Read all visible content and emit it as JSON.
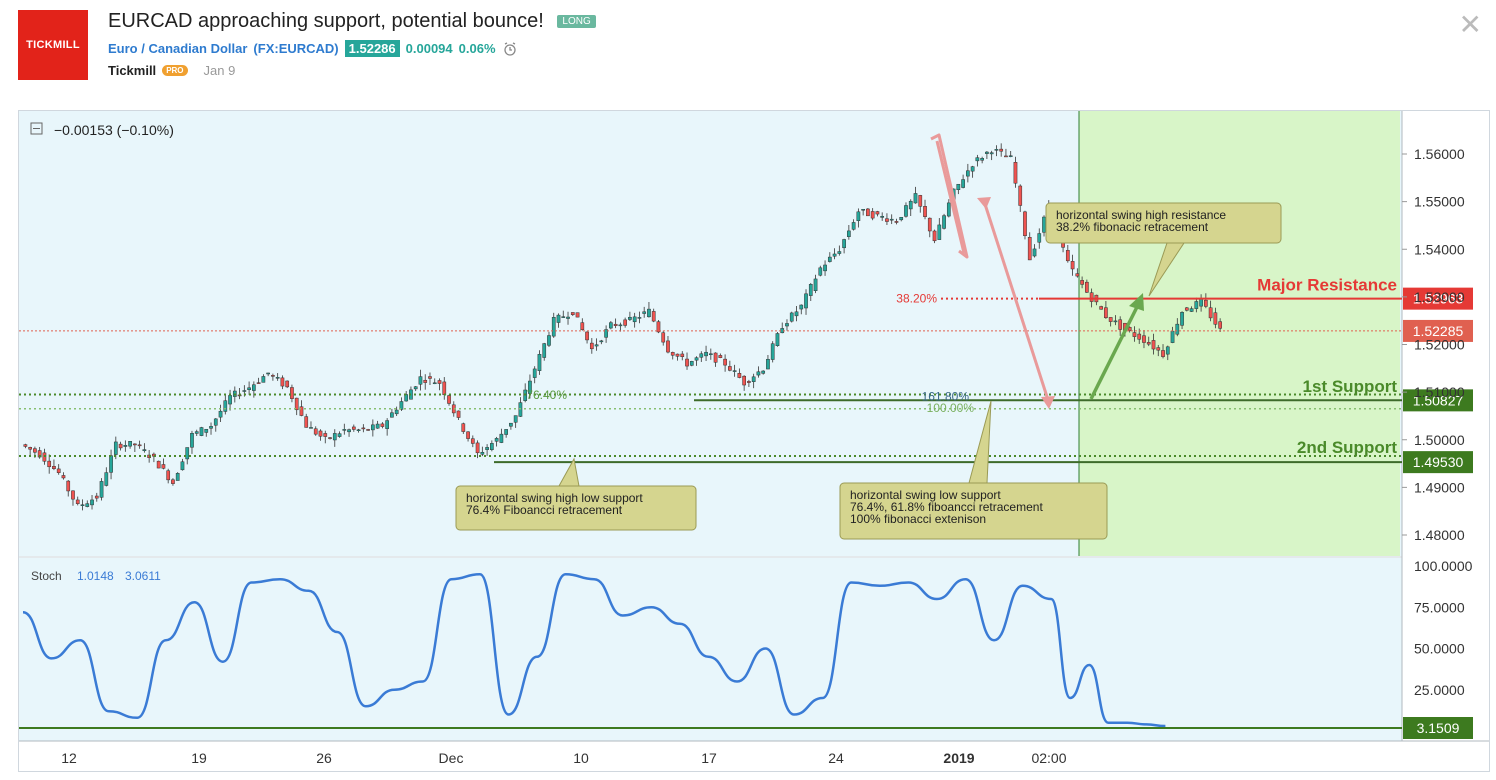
{
  "header": {
    "logo_text": "TICKMILL",
    "title": "EURCAD approaching support, potential bounce!",
    "badge": "LONG",
    "symbol_name": "Euro / Canadian Dollar",
    "symbol_code": "(FX:EURCAD)",
    "price": "1.52286",
    "change": "0.00094",
    "change_pct": "0.06%",
    "author": "Tickmill",
    "author_badge": "PRO",
    "date": "Jan 9",
    "close_icon": "close-icon"
  },
  "chart_data": {
    "type": "candlestick",
    "symbol": "EURCAD",
    "change_readout": "−0.00153 (−0.10%)",
    "ylim": [
      1.476,
      1.566
    ],
    "y_ticks": [
      "1.56000",
      "1.55000",
      "1.54000",
      "1.53000",
      "1.52000",
      "1.51000",
      "1.50000",
      "1.49000",
      "1.48000"
    ],
    "x_ticks": [
      "12",
      "19",
      "26",
      "Dec",
      "10",
      "17",
      "24",
      "2019",
      "02:00"
    ],
    "price_path": [
      [
        0,
        1.499
      ],
      [
        2,
        1.497
      ],
      [
        4,
        1.493
      ],
      [
        6,
        1.486
      ],
      [
        8,
        1.488
      ],
      [
        10,
        1.499
      ],
      [
        12,
        1.499
      ],
      [
        14,
        1.496
      ],
      [
        16,
        1.491
      ],
      [
        18,
        1.501
      ],
      [
        20,
        1.503
      ],
      [
        22,
        1.509
      ],
      [
        24,
        1.511
      ],
      [
        26,
        1.514
      ],
      [
        28,
        1.511
      ],
      [
        30,
        1.503
      ],
      [
        32,
        1.5
      ],
      [
        34,
        1.502
      ],
      [
        36,
        1.502
      ],
      [
        38,
        1.503
      ],
      [
        40,
        1.508
      ],
      [
        42,
        1.513
      ],
      [
        44,
        1.512
      ],
      [
        46,
        1.504
      ],
      [
        48,
        1.497
      ],
      [
        50,
        1.5
      ],
      [
        52,
        1.505
      ],
      [
        54,
        1.515
      ],
      [
        56,
        1.525
      ],
      [
        58,
        1.527
      ],
      [
        60,
        1.519
      ],
      [
        62,
        1.524
      ],
      [
        64,
        1.525
      ],
      [
        66,
        1.527
      ],
      [
        68,
        1.519
      ],
      [
        70,
        1.516
      ],
      [
        72,
        1.518
      ],
      [
        74,
        1.516
      ],
      [
        76,
        1.512
      ],
      [
        78,
        1.515
      ],
      [
        80,
        1.524
      ],
      [
        82,
        1.528
      ],
      [
        84,
        1.536
      ],
      [
        86,
        1.54
      ],
      [
        88,
        1.548
      ],
      [
        90,
        1.547
      ],
      [
        92,
        1.546
      ],
      [
        94,
        1.551
      ],
      [
        96,
        1.542
      ],
      [
        98,
        1.552
      ],
      [
        100,
        1.558
      ],
      [
        102,
        1.561
      ],
      [
        104,
        1.559
      ],
      [
        106,
        1.538
      ],
      [
        108,
        1.549
      ],
      [
        110,
        1.537
      ],
      [
        112,
        1.531
      ],
      [
        114,
        1.526
      ],
      [
        116,
        1.523
      ],
      [
        118,
        1.521
      ],
      [
        120,
        1.518
      ],
      [
        122,
        1.527
      ],
      [
        124,
        1.529
      ],
      [
        126,
        1.523
      ]
    ],
    "stoch": {
      "label": "Stoch",
      "k_value": "1.0148",
      "d_value": "3.0611",
      "last_value": "3.1509",
      "ylim": [
        0,
        100
      ],
      "y_ticks": [
        "100.0000",
        "75.0000",
        "50.0000",
        "25.0000"
      ],
      "path": [
        [
          0,
          72
        ],
        [
          3,
          44
        ],
        [
          6,
          55
        ],
        [
          9,
          12
        ],
        [
          12,
          8
        ],
        [
          15,
          55
        ],
        [
          18,
          78
        ],
        [
          21,
          42
        ],
        [
          24,
          90
        ],
        [
          27,
          92
        ],
        [
          30,
          85
        ],
        [
          33,
          60
        ],
        [
          36,
          15
        ],
        [
          39,
          25
        ],
        [
          42,
          30
        ],
        [
          45,
          92
        ],
        [
          48,
          95
        ],
        [
          51,
          10
        ],
        [
          54,
          45
        ],
        [
          57,
          95
        ],
        [
          60,
          92
        ],
        [
          63,
          70
        ],
        [
          66,
          75
        ],
        [
          69,
          65
        ],
        [
          72,
          45
        ],
        [
          75,
          30
        ],
        [
          78,
          50
        ],
        [
          81,
          10
        ],
        [
          84,
          20
        ],
        [
          87,
          90
        ],
        [
          90,
          88
        ],
        [
          93,
          90
        ],
        [
          96,
          80
        ],
        [
          99,
          92
        ],
        [
          102,
          55
        ],
        [
          105,
          88
        ],
        [
          108,
          80
        ],
        [
          110,
          20
        ],
        [
          112,
          40
        ],
        [
          114,
          5
        ],
        [
          116,
          5
        ],
        [
          118,
          4
        ],
        [
          120,
          3
        ]
      ]
    },
    "annotations": [
      {
        "label": "Major Resistance",
        "value": "1.52963",
        "fib": "38.20%",
        "color": "#e53935"
      },
      {
        "label": "1st Support",
        "value": "1.50827",
        "fib": "161.80%",
        "color": "#4a8a2a"
      },
      {
        "label": "2nd Support",
        "value": "1.49530",
        "color": "#4a8a2a"
      },
      {
        "label": "current",
        "value": "1.52285",
        "color": "#e06050"
      }
    ],
    "fib_labels": [
      "76.40%",
      "100.00%"
    ],
    "callouts": [
      {
        "name": "resistance-callout",
        "lines": [
          "horizontal swing high resistance",
          "38.2% fibonacic retracement"
        ]
      },
      {
        "name": "support-callout-left",
        "lines": [
          "horizontal swing high low support",
          "76.4% Fiboancci retracement"
        ]
      },
      {
        "name": "support-callout-right",
        "lines": [
          "horizontal swing low support",
          "76.4%, 61.8% fiboancci retracement",
          "100% fibonacci extenison"
        ]
      }
    ],
    "colors": {
      "up": "#26a69a",
      "down": "#ef5350",
      "panel_bg": "#e8f6fb",
      "zone": "#d8f5c8",
      "stoch_line": "#3a7bd5"
    }
  }
}
